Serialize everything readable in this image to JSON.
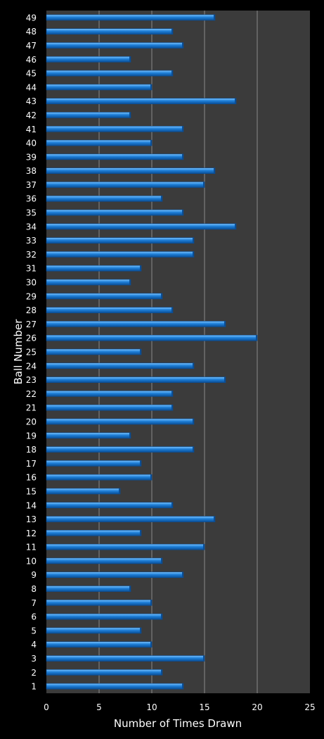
{
  "chart_data": {
    "type": "bar",
    "orientation": "horizontal",
    "xlabel": "Number of Times Drawn",
    "ylabel": "Ball Number",
    "xlim": [
      0,
      25
    ],
    "xticks": [
      "0",
      "5",
      "10",
      "15",
      "20",
      "25"
    ],
    "grid": true,
    "colors": {
      "background": "#000000",
      "plot": "#3b3b3b",
      "bar": "#1e7fd8",
      "bar_highlight": "#7cc4ff",
      "bar_shadow": "#0a4e96",
      "grid": "#8a8a8a",
      "text": "#ffffff"
    },
    "categories": [
      "1",
      "2",
      "3",
      "4",
      "5",
      "6",
      "7",
      "8",
      "9",
      "10",
      "11",
      "12",
      "13",
      "14",
      "15",
      "16",
      "17",
      "18",
      "19",
      "20",
      "21",
      "22",
      "23",
      "24",
      "25",
      "26",
      "27",
      "28",
      "29",
      "30",
      "31",
      "32",
      "33",
      "34",
      "35",
      "36",
      "37",
      "38",
      "39",
      "40",
      "41",
      "42",
      "43",
      "44",
      "45",
      "46",
      "47",
      "48",
      "49"
    ],
    "values": [
      13,
      11,
      15,
      10,
      9,
      11,
      10,
      8,
      13,
      11,
      15,
      9,
      16,
      12,
      7,
      10,
      9,
      14,
      8,
      14,
      12,
      12,
      17,
      14,
      9,
      20,
      17,
      12,
      11,
      8,
      9,
      14,
      14,
      18,
      13,
      11,
      15,
      16,
      13,
      10,
      13,
      8,
      18,
      10,
      12,
      8,
      13,
      12,
      16
    ]
  }
}
